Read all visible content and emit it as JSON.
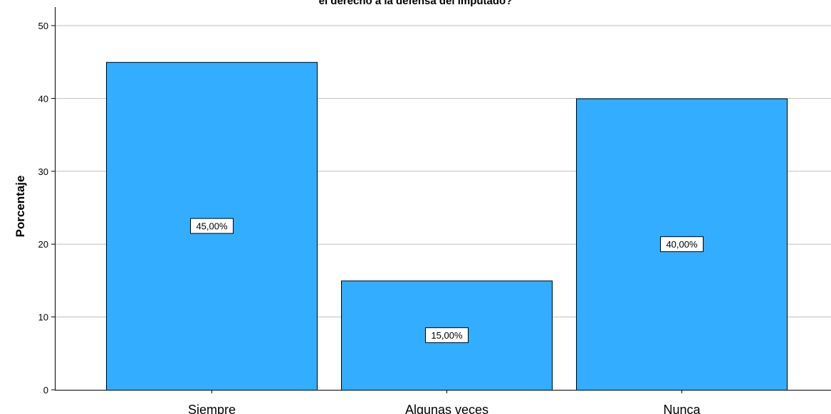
{
  "chart_data": {
    "type": "bar",
    "title": "el derecho a la defensa del imputado?",
    "xlabel": "",
    "ylabel": "Porcentaje",
    "categories": [
      "Siempre",
      "Algunas veces",
      "Nunca"
    ],
    "values": [
      45,
      15,
      40
    ],
    "data_labels": [
      "45,00%",
      "15,00%",
      "40,00%"
    ],
    "ylim": [
      0,
      52
    ],
    "yticks": [
      0,
      10,
      20,
      30,
      40,
      50
    ],
    "grid": true,
    "bar_color": "#33adff",
    "bar_edge_color": "#000000",
    "grid_color": "#bfbfbf"
  }
}
